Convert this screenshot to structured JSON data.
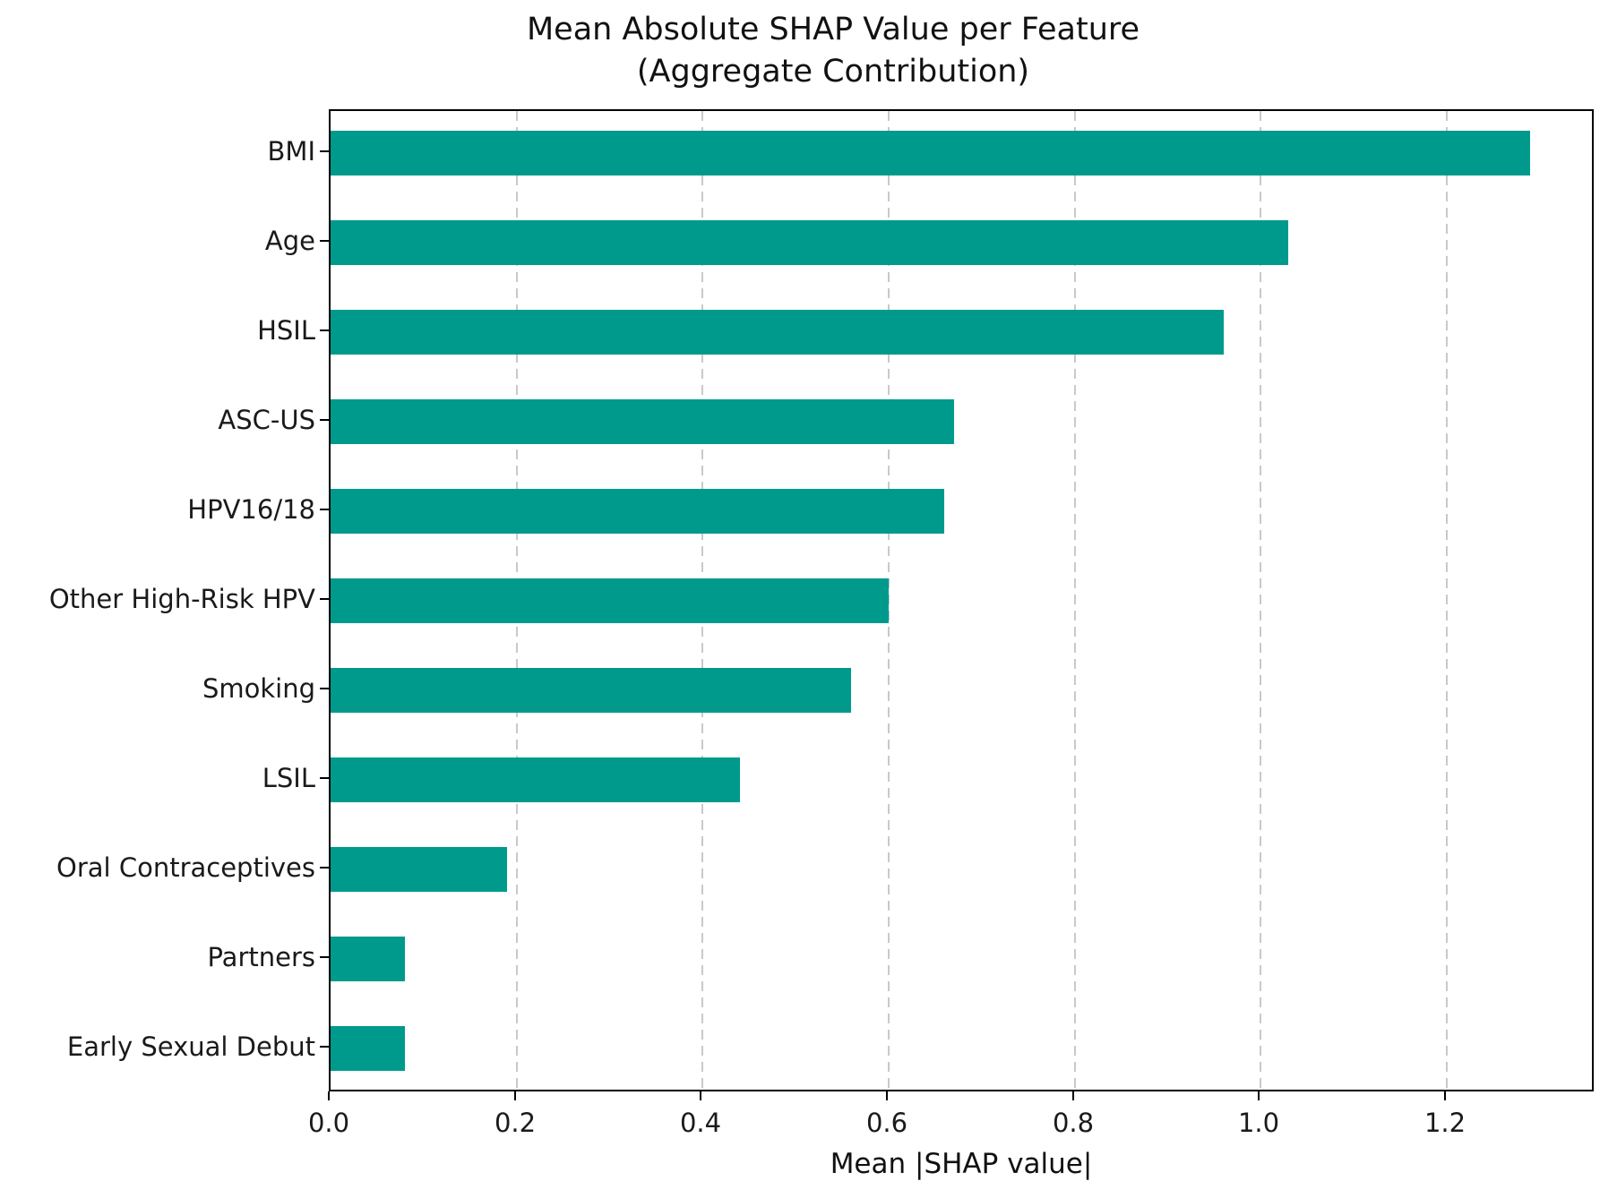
{
  "figure": {
    "title_line1": "Mean Absolute SHAP Value per Feature",
    "title_line2": "(Aggregate Contribution)"
  },
  "chart_data": {
    "type": "bar",
    "orientation": "horizontal",
    "title": "Mean Absolute SHAP Value per Feature (Aggregate Contribution)",
    "categories": [
      "BMI",
      "Age",
      "HSIL",
      "ASC-US",
      "HPV16/18",
      "Other High-Risk HPV",
      "Smoking",
      "LSIL",
      "Oral Contraceptives",
      "Partners",
      "Early Sexual Debut"
    ],
    "values": [
      1.29,
      1.03,
      0.96,
      0.67,
      0.66,
      0.6,
      0.56,
      0.44,
      0.19,
      0.08,
      0.08
    ],
    "xlabel": "Mean |SHAP value|",
    "ylabel": "",
    "xlim": [
      0,
      1.36
    ],
    "xticks": [
      0.0,
      0.2,
      0.4,
      0.6,
      0.8,
      1.0,
      1.2
    ],
    "xtick_labels": [
      "0.0",
      "0.2",
      "0.4",
      "0.6",
      "0.8",
      "1.0",
      "1.2"
    ],
    "bar_color": "#009a8c",
    "grid": "vertical-dashed",
    "gridline_color": "#c9c9c9",
    "legend": "none"
  }
}
